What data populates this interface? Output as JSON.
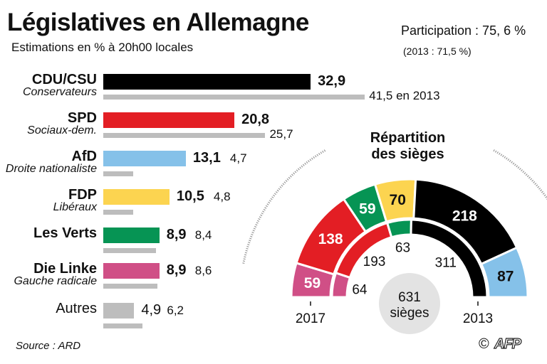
{
  "header": {
    "title": "Législatives en Allemagne",
    "subtitle": "Estimations en % à 20h00 locales",
    "participation": "Participation : 75, 6 %",
    "participation_2013": "(2013 : 71,5 %)"
  },
  "chart_data": [
    {
      "type": "bar",
      "orientation": "horizontal",
      "categories": [
        "CDU/CSU",
        "SPD",
        "AfD",
        "FDP",
        "Les Verts",
        "Die Linke",
        "Autres"
      ],
      "subtitles": [
        "Conservateurs",
        "Sociaux-dem.",
        "Droite nationaliste",
        "Libéraux",
        "",
        "Gauche radicale",
        ""
      ],
      "series": [
        {
          "name": "2017",
          "values": [
            32.9,
            20.8,
            13.1,
            10.5,
            8.9,
            8.9,
            4.9
          ],
          "labels": [
            "32,9",
            "20,8",
            "13,1",
            "10,5",
            "8,9",
            "8,9",
            "4,9"
          ]
        },
        {
          "name": "2013",
          "values": [
            41.5,
            25.7,
            4.7,
            4.8,
            8.4,
            8.6,
            6.2
          ],
          "labels": [
            "41,5 en 2013",
            "25,7",
            "4,7",
            "4,8",
            "8,4",
            "8,6",
            "6,2"
          ]
        }
      ],
      "colors": [
        "#000000",
        "#e31e24",
        "#85c1e9",
        "#fcd450",
        "#069454",
        "#d04f86",
        "#bdbdbd"
      ],
      "color_2013": "#bdbdbd"
    },
    {
      "type": "pie",
      "subtype": "hemicycle",
      "title": "Répartition des sièges",
      "total_label": "631 sièges",
      "rings": [
        {
          "name": "2017",
          "parties": [
            "Die Linke",
            "SPD",
            "Les Verts",
            "FDP",
            "CDU/CSU",
            "AfD"
          ],
          "values": [
            59,
            138,
            59,
            70,
            218,
            87
          ],
          "colors": [
            "#d04f86",
            "#e31e24",
            "#069454",
            "#fcd450",
            "#000000",
            "#85c1e9"
          ],
          "label_colors": [
            "#ffffff",
            "#ffffff",
            "#ffffff",
            "#111111",
            "#ffffff",
            "#111111"
          ]
        },
        {
          "name": "2013",
          "parties": [
            "Die Linke",
            "SPD",
            "Les Verts",
            "CDU/CSU"
          ],
          "values": [
            64,
            193,
            63,
            311
          ],
          "colors": [
            "#d04f86",
            "#e31e24",
            "#069454",
            "#000000"
          ]
        }
      ]
    }
  ],
  "footer": {
    "source": "Source : ARD",
    "copyright": "©",
    "logo": "AFP"
  }
}
